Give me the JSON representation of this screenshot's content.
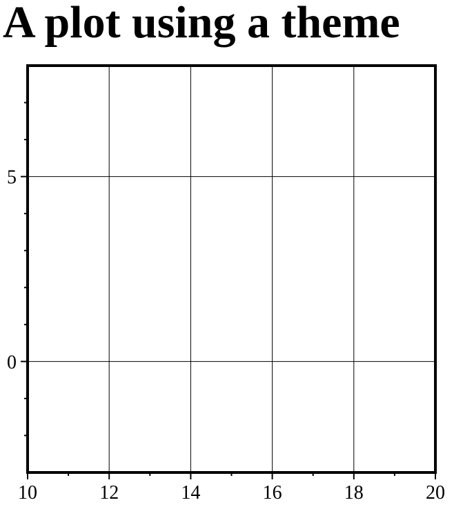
{
  "chart_data": {
    "type": "scatter",
    "title": "A plot using a theme",
    "xlabel": "",
    "ylabel": "",
    "xlim": [
      10,
      20
    ],
    "ylim": [
      -3,
      8
    ],
    "grid": true,
    "x_ticks": [
      10,
      12,
      14,
      16,
      18,
      20
    ],
    "x_tick_labels": [
      "10",
      "12",
      "14",
      "16",
      "18",
      "20"
    ],
    "x_minor_ticks": [
      11,
      13,
      15,
      17,
      19
    ],
    "y_ticks": [
      0,
      5
    ],
    "y_tick_labels": [
      "0",
      "5"
    ],
    "y_minor_ticks": [
      -2,
      -1,
      1,
      2,
      3,
      4,
      6,
      7
    ],
    "series": []
  }
}
